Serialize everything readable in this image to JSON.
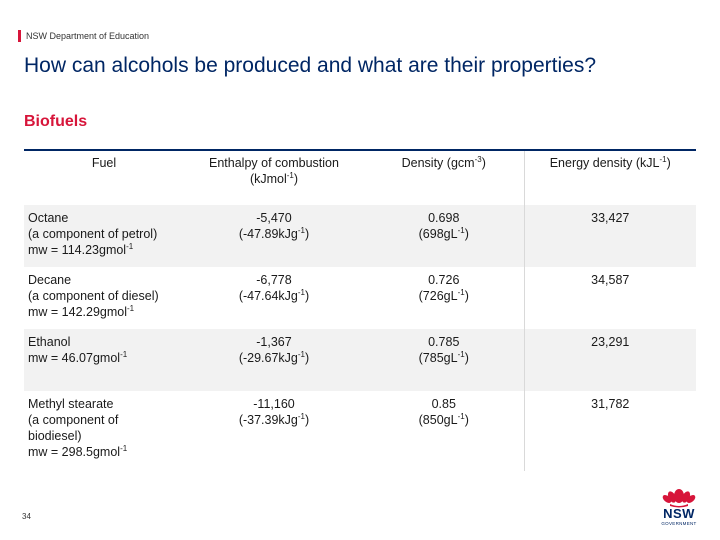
{
  "header": {
    "department": "NSW Department of Education",
    "title": "How can alcohols be produced and what are their properties?",
    "subtitle": "Biofuels"
  },
  "table": {
    "columns": [
      {
        "label": "Fuel",
        "sup": ""
      },
      {
        "label": "Enthalpy of combustion (kJmol",
        "sup": "-1",
        "tail": ")"
      },
      {
        "label": "Density (gcm",
        "sup": "-3",
        "tail": ")"
      },
      {
        "label": "Energy density (kJL",
        "sup": "-1",
        "tail": ")"
      }
    ],
    "rows": [
      {
        "fuel_lines": [
          "Octane",
          "(a component of petrol)"
        ],
        "mw": "mw = 114.23gmol",
        "enthalpy": "-5,470",
        "enthalpy_g": "(-47.89kJg",
        "density": "0.698",
        "density_l": "(698gL",
        "energy": "33,427"
      },
      {
        "fuel_lines": [
          "Decane",
          "(a component of diesel)"
        ],
        "mw": "mw = 142.29gmol",
        "enthalpy": "-6,778",
        "enthalpy_g": "(-47.64kJg",
        "density": "0.726",
        "density_l": "(726gL",
        "energy": "34,587"
      },
      {
        "fuel_lines": [
          "Ethanol"
        ],
        "mw": "mw = 46.07gmol",
        "enthalpy": "-1,367",
        "enthalpy_g": "(-29.67kJg",
        "density": "0.785",
        "density_l": "(785gL",
        "energy": "23,291"
      },
      {
        "fuel_lines": [
          "Methyl stearate",
          "(a component of",
          "biodiesel)"
        ],
        "mw": "mw = 298.5gmol",
        "enthalpy": "-11,160",
        "enthalpy_g": "(-37.39kJg",
        "density": "0.85",
        "density_l": "(850gL",
        "energy": "31,782"
      }
    ]
  },
  "footer": {
    "page_number": "34",
    "logo_text": "NSW",
    "logo_subtext": "GOVERNMENT"
  },
  "colors": {
    "navy": "#002664",
    "red": "#d7153a"
  }
}
